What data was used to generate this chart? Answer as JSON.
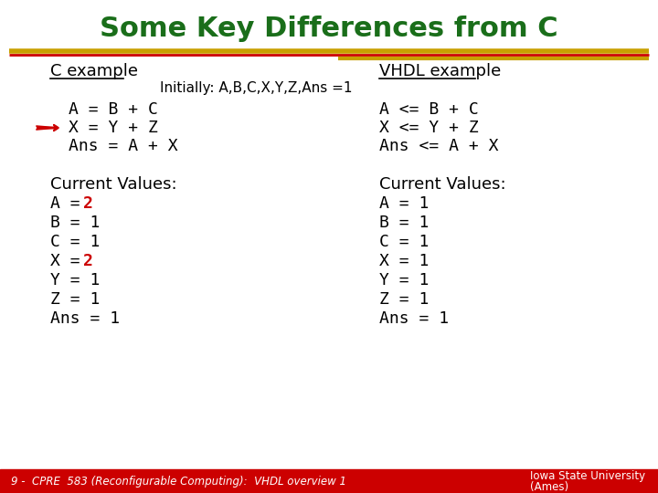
{
  "title": "Some Key Differences from C",
  "title_color": "#1a6e1a",
  "title_fontsize": 22,
  "bg_color": "#ffffff",
  "line_color_gold": "#c8a000",
  "line_color_red": "#cc0000",
  "c_header": "C example",
  "vhdl_header": "VHDL example",
  "initially_text": "Initially: A,B,C,X,Y,Z,Ans =1",
  "c_code_line1": "A = B + C",
  "c_code_line2": "X = Y + Z",
  "c_code_line3": "Ans = A + X",
  "vhdl_code_line1": "A <= B + C",
  "vhdl_code_line2": "X <= Y + Z",
  "vhdl_code_line3": "Ans <= A + X",
  "c_current_label": "Current Values:",
  "c_val_A_base": "A = ",
  "c_val_A_hi": "2",
  "c_val_B": "B = 1",
  "c_val_C": "C = 1",
  "c_val_X_base": "X = ",
  "c_val_X_hi": "2",
  "c_val_Y": "Y = 1",
  "c_val_Z": "Z = 1",
  "c_val_Ans": "Ans = 1",
  "vhdl_current_label": "Current Values:",
  "vhdl_vals": [
    "A = 1",
    "B = 1",
    "C = 1",
    "X = 1",
    "Y = 1",
    "Z = 1",
    "Ans = 1"
  ],
  "footer_text": "9 -  CPRE  583 (Reconfigurable Computing):  VHDL overview 1",
  "footer_right_line1": "Iowa State University",
  "footer_right_line2": "(Ames)",
  "footer_bg": "#cc0000",
  "footer_text_color": "#ffffff",
  "arrow_color": "#cc0000",
  "highlight_color": "#cc0000",
  "code_color": "#000000",
  "header_fontsize": 13,
  "code_fontsize": 13,
  "cv_fontsize": 13,
  "footer_fontsize": 8.5
}
